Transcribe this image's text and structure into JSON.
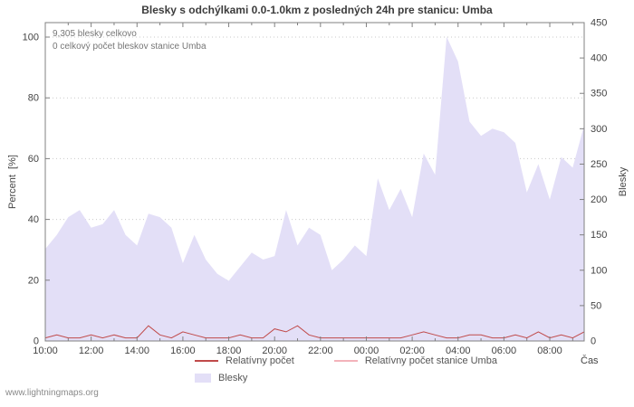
{
  "title": "Blesky s odchýlkami 0.0-1.0km z posledných 24h pre stanicu: Umba",
  "annotations": {
    "total": "9,305 blesky celkovo",
    "station_total": "0 celkový počet bleskov stanice Umba"
  },
  "watermark": "www.lightningmaps.org",
  "chart_data": {
    "type": "area",
    "title": "Blesky s odchýlkami 0.0-1.0km z posledných 24h pre stanicu: Umba",
    "xlabel": "Čas",
    "ylabel_left": "Percent  [%]",
    "ylabel_right": "Blesky",
    "ylim_left": [
      0,
      100
    ],
    "ylim_right": [
      0,
      450
    ],
    "grid": true,
    "legend_position": "bottom",
    "x_ticks": [
      "10:00",
      "12:00",
      "14:00",
      "16:00",
      "18:00",
      "20:00",
      "22:00",
      "00:00",
      "02:00",
      "04:00",
      "06:00",
      "08:00"
    ],
    "yticks_left": [
      0,
      20,
      40,
      60,
      80,
      100
    ],
    "yticks_right": [
      0,
      50,
      100,
      150,
      200,
      250,
      300,
      350,
      400,
      450
    ],
    "x": [
      "10:00",
      "10:30",
      "11:00",
      "11:30",
      "12:00",
      "12:30",
      "13:00",
      "13:30",
      "14:00",
      "14:30",
      "15:00",
      "15:30",
      "16:00",
      "16:30",
      "17:00",
      "17:30",
      "18:00",
      "18:30",
      "19:00",
      "19:30",
      "20:00",
      "20:30",
      "21:00",
      "21:30",
      "22:00",
      "22:30",
      "23:00",
      "23:30",
      "00:00",
      "00:30",
      "01:00",
      "01:30",
      "02:00",
      "02:30",
      "03:00",
      "03:30",
      "04:00",
      "04:30",
      "05:00",
      "05:30",
      "06:00",
      "06:30",
      "07:00",
      "07:30",
      "08:00",
      "08:30",
      "09:00",
      "09:30"
    ],
    "series": [
      {
        "key": "relativny_pocet",
        "name": "Relatívny počet",
        "type": "line",
        "axis": "left",
        "color": "#c04a4a",
        "values": [
          1,
          2,
          1,
          1,
          2,
          1,
          2,
          1,
          1,
          5,
          2,
          1,
          3,
          2,
          1,
          1,
          1,
          2,
          1,
          1,
          4,
          3,
          5,
          2,
          1,
          1,
          1,
          1,
          1,
          1,
          1,
          1,
          2,
          3,
          2,
          1,
          1,
          2,
          2,
          1,
          1,
          2,
          1,
          3,
          1,
          2,
          1,
          3
        ]
      },
      {
        "key": "relativny_pocet_umba",
        "name": "Relatívny počet stanice Umba",
        "type": "line",
        "axis": "left",
        "color": "#f3b3ba",
        "values": [
          0,
          0,
          0,
          0,
          0,
          0,
          0,
          0,
          0,
          0,
          0,
          0,
          0,
          0,
          0,
          0,
          0,
          0,
          0,
          0,
          0,
          0,
          0,
          0,
          0,
          0,
          0,
          0,
          0,
          0,
          0,
          0,
          0,
          0,
          0,
          0,
          0,
          0,
          0,
          0,
          0,
          0,
          0,
          0,
          0,
          0,
          0,
          0
        ]
      },
      {
        "key": "blesky",
        "name": "Blesky",
        "type": "area",
        "axis": "right",
        "color": "#e3dff7",
        "values": [
          130,
          150,
          175,
          185,
          160,
          165,
          185,
          150,
          135,
          180,
          175,
          160,
          110,
          150,
          115,
          95,
          85,
          105,
          125,
          115,
          120,
          185,
          135,
          160,
          150,
          100,
          115,
          135,
          120,
          230,
          185,
          215,
          175,
          265,
          235,
          430,
          395,
          310,
          290,
          300,
          295,
          280,
          210,
          250,
          200,
          260,
          245,
          305
        ]
      }
    ]
  }
}
